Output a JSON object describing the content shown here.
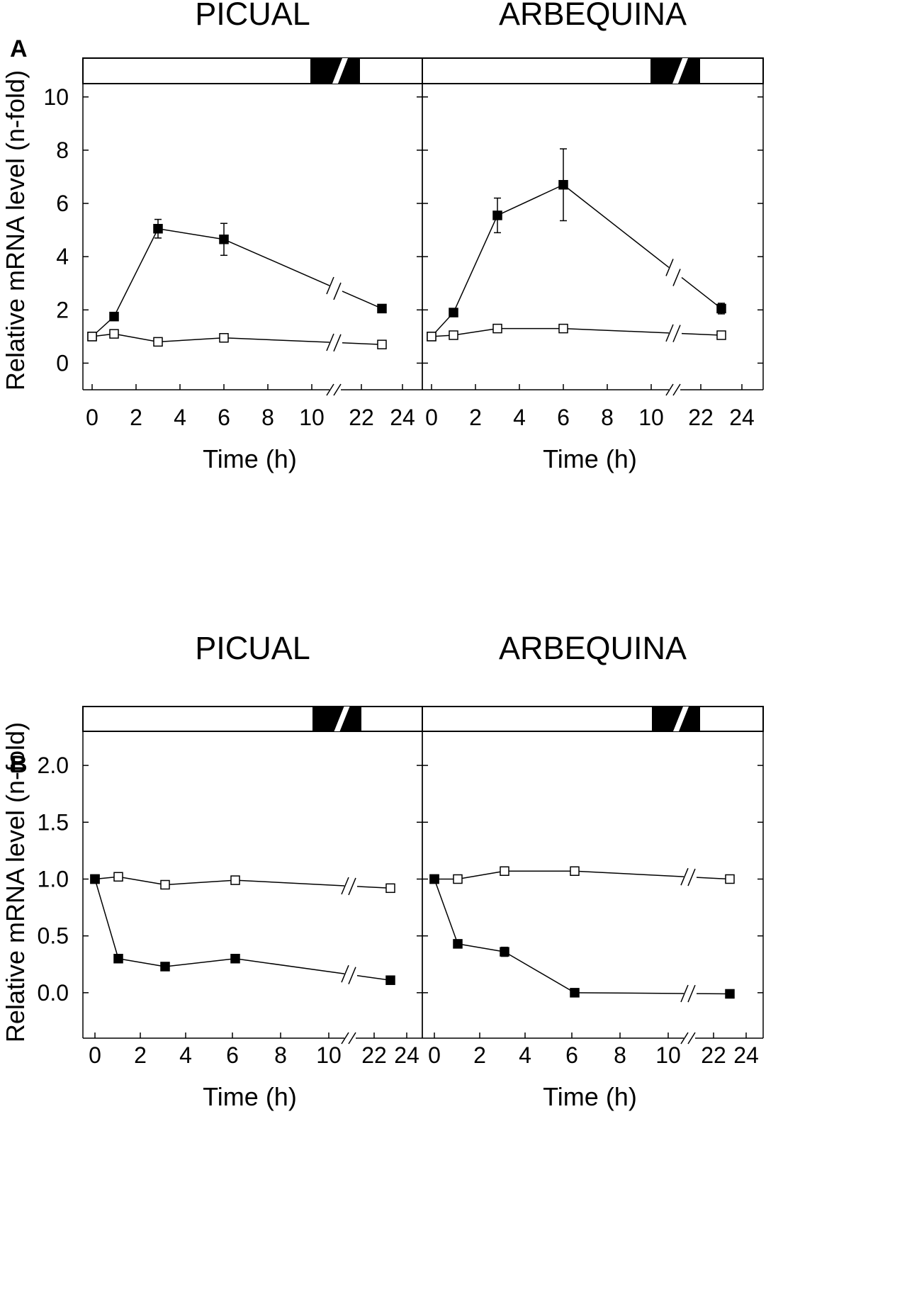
{
  "figure": {
    "panel_labels": [
      "A",
      "B"
    ]
  },
  "chart_data": [
    {
      "type": "line",
      "panel": "A",
      "title": "PICUAL",
      "xlabel": "Time (h)",
      "ylabel": "Relative mRNA level (n-fold)",
      "x_tick_labels": [
        "0",
        "2",
        "4",
        "6",
        "8",
        "10",
        "22",
        "24"
      ],
      "y_ticks": [
        0,
        2,
        4,
        6,
        8,
        10
      ],
      "y_tick_labels": [
        "0",
        "2",
        "4",
        "6",
        "8",
        "10"
      ],
      "ylim": [
        -1,
        10.5
      ],
      "axis_break": "between 10 and 22 h",
      "light_bar": "white = light, black = dark (~10–22 h)",
      "series": [
        {
          "name": "filled squares",
          "marker": "filled-square",
          "x": [
            0,
            1,
            3,
            6,
            23
          ],
          "values": [
            1.0,
            1.75,
            5.05,
            4.65,
            2.05
          ],
          "errors": [
            0.05,
            0.1,
            0.35,
            0.6,
            0.1
          ]
        },
        {
          "name": "open squares",
          "marker": "open-square",
          "x": [
            0,
            1,
            3,
            6,
            23
          ],
          "values": [
            1.0,
            1.1,
            0.8,
            0.95,
            0.7
          ],
          "errors": [
            0.05,
            0.05,
            0.05,
            0.05,
            0.05
          ]
        }
      ]
    },
    {
      "type": "line",
      "panel": "A",
      "title": "ARBEQUINA",
      "xlabel": "Time (h)",
      "ylabel": "",
      "x_tick_labels": [
        "0",
        "2",
        "4",
        "6",
        "8",
        "10",
        "22",
        "24"
      ],
      "y_ticks": [
        0,
        2,
        4,
        6,
        8,
        10
      ],
      "y_tick_labels": [],
      "ylim": [
        -1,
        10.5
      ],
      "axis_break": "between 10 and 22 h",
      "light_bar": "white = light, black = dark (~10–22 h)",
      "series": [
        {
          "name": "filled squares",
          "marker": "filled-square",
          "x": [
            0,
            1,
            3,
            6,
            23
          ],
          "values": [
            1.0,
            1.9,
            5.55,
            6.7,
            2.05
          ],
          "errors": [
            0.05,
            0.1,
            0.65,
            1.35,
            0.2
          ]
        },
        {
          "name": "open squares",
          "marker": "open-square",
          "x": [
            0,
            1,
            3,
            6,
            23
          ],
          "values": [
            1.0,
            1.05,
            1.3,
            1.3,
            1.05
          ],
          "errors": [
            0.05,
            0.05,
            0.05,
            0.05,
            0.05
          ]
        }
      ]
    },
    {
      "type": "line",
      "panel": "B",
      "title": "PICUAL",
      "xlabel": "Time (h)",
      "ylabel": "Relative mRNA level (n-fold)",
      "x_tick_labels": [
        "0",
        "2",
        "4",
        "6",
        "8",
        "10",
        "22",
        "24"
      ],
      "y_ticks": [
        0.0,
        0.5,
        1.0,
        1.5,
        2.0
      ],
      "y_tick_labels": [
        "0.0",
        "0.5",
        "1.0",
        "1.5",
        "2.0"
      ],
      "ylim": [
        -0.4,
        2.3
      ],
      "axis_break": "between 10 and 22 h",
      "light_bar": "white = light, black = dark (~10–22 h)",
      "series": [
        {
          "name": "open squares",
          "marker": "open-square",
          "x": [
            0,
            1,
            3,
            6,
            23
          ],
          "values": [
            1.0,
            1.02,
            0.95,
            0.99,
            0.92
          ],
          "errors": [
            0.01,
            0.01,
            0.01,
            0.01,
            0.01
          ]
        },
        {
          "name": "filled squares",
          "marker": "filled-square",
          "x": [
            0,
            1,
            3,
            6,
            23
          ],
          "values": [
            1.0,
            0.3,
            0.23,
            0.3,
            0.11
          ],
          "errors": [
            0.01,
            0.01,
            0.01,
            0.01,
            0.03
          ]
        }
      ]
    },
    {
      "type": "line",
      "panel": "B",
      "title": "ARBEQUINA",
      "xlabel": "Time (h)",
      "ylabel": "",
      "x_tick_labels": [
        "0",
        "2",
        "4",
        "6",
        "8",
        "10",
        "22",
        "24"
      ],
      "y_ticks": [
        0.0,
        0.5,
        1.0,
        1.5,
        2.0
      ],
      "y_tick_labels": [],
      "ylim": [
        -0.4,
        2.3
      ],
      "axis_break": "between 10 and 22 h",
      "light_bar": "white = light, black = dark (~10–22 h)",
      "series": [
        {
          "name": "open squares",
          "marker": "open-square",
          "x": [
            0,
            1,
            3,
            6,
            23
          ],
          "values": [
            1.0,
            1.0,
            1.07,
            1.07,
            1.0
          ],
          "errors": [
            0.01,
            0.01,
            0.01,
            0.01,
            0.01
          ]
        },
        {
          "name": "filled squares",
          "marker": "filled-square",
          "x": [
            0,
            1,
            3,
            6,
            23
          ],
          "values": [
            1.0,
            0.43,
            0.36,
            0.0,
            -0.01
          ],
          "errors": [
            0.01,
            0.03,
            0.04,
            0.01,
            0.03
          ]
        }
      ]
    }
  ]
}
